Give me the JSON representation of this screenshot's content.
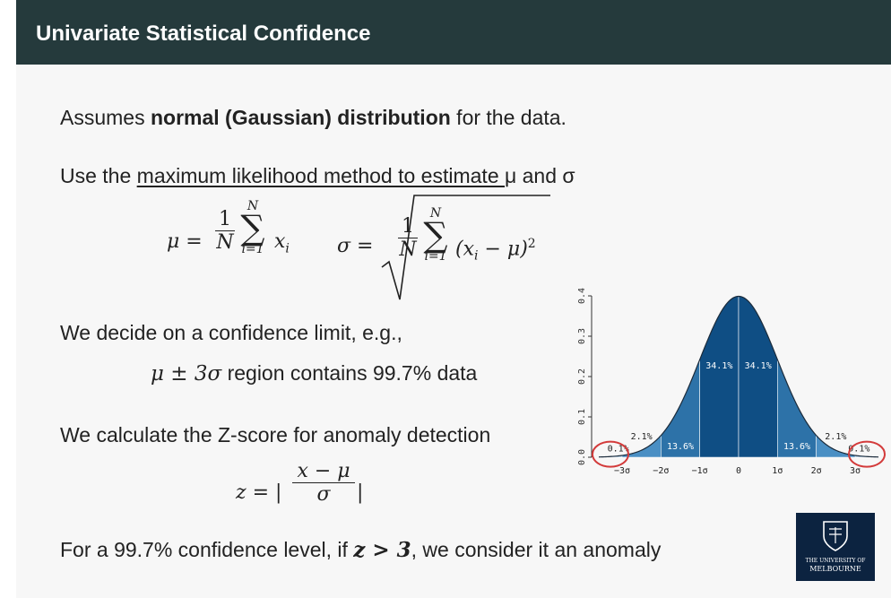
{
  "header": {
    "title": "Univariate Statistical Confidence"
  },
  "bullets": {
    "b1_pre": "Assumes ",
    "b1_bold": "normal (Gaussian) distribution",
    "b1_post": " for the data.",
    "b2_pre": "Use the ",
    "b2_underline": "maximum likelihood method to estimate ",
    "b2_post": "μ and σ",
    "b3": "We decide on a confidence limit, e.g.,",
    "b3_math": "μ ± 3σ",
    "b3_tail": " region contains 99.7% data",
    "b4": "We calculate the Z-score for anomaly detection",
    "b5_pre": "For a 99.7% confidence level, if ",
    "b5_math": "z > 3",
    "b5_post": ", we consider it an anomaly"
  },
  "formulas": {
    "mu_lhs": "μ =",
    "one": "1",
    "N": "N",
    "sum_top": "N",
    "sum_bot": "i=1",
    "x_i": "x",
    "sub_i": "i",
    "sigma_lhs": "σ =",
    "sigma_term": "(x",
    "sigma_term2": " − μ)",
    "sq": "2",
    "z_lhs": "z = |",
    "z_num": "x − μ",
    "z_den": "σ",
    "z_rhs": "|"
  },
  "chart_data": {
    "type": "area",
    "title": "",
    "distribution": "standard normal",
    "ylim": [
      0,
      0.4
    ],
    "yticks": [
      "0.0",
      "0.1",
      "0.2",
      "0.3",
      "0.4"
    ],
    "xticks": [
      "−3σ",
      "−2σ",
      "−1σ",
      "0",
      "1σ",
      "2σ",
      "3σ"
    ],
    "xlim": [
      -3.6,
      3.6
    ],
    "bands": [
      {
        "from": -3,
        "to": -2,
        "label": "2.1%",
        "color": "#4a8fc4"
      },
      {
        "from": -2,
        "to": -1,
        "label": "13.6%",
        "color": "#2d72a8"
      },
      {
        "from": -1,
        "to": 0,
        "label": "34.1%",
        "color": "#0f4e84"
      },
      {
        "from": 0,
        "to": 1,
        "label": "34.1%",
        "color": "#0f4e84"
      },
      {
        "from": 1,
        "to": 2,
        "label": "13.6%",
        "color": "#2d72a8"
      },
      {
        "from": 2,
        "to": 3,
        "label": "2.1%",
        "color": "#4a8fc4"
      }
    ],
    "tails": [
      {
        "side": "left",
        "label": "0.1%"
      },
      {
        "side": "right",
        "label": "0.1%"
      }
    ],
    "tail_color": "#a9cbe6",
    "highlight_color": "#d33b3b"
  },
  "logo": {
    "line1": "THE UNIVERSITY OF",
    "line2": "MELBOURNE"
  }
}
